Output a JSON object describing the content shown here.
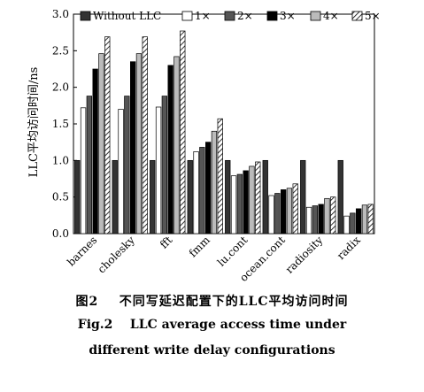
{
  "chart_data": {
    "type": "bar",
    "ylabel": "LLC平均访问时间/ns",
    "ylim": [
      0,
      3.0
    ],
    "yticks": [
      "0.0",
      "0.5",
      "1.0",
      "1.5",
      "2.0",
      "2.5",
      "3.0"
    ],
    "ytick_values": [
      0,
      0.5,
      1.0,
      1.5,
      2.0,
      2.5,
      3.0
    ],
    "legend_position": "top",
    "categories": [
      "barnes",
      "cholesky",
      "fft",
      "fmm",
      "lu.cont",
      "ocean.cont",
      "radiosity",
      "radix"
    ],
    "series": [
      {
        "name": "Without LLC",
        "pattern": "solid-dark",
        "values": [
          1.0,
          1.0,
          1.0,
          1.0,
          1.0,
          1.0,
          1.0,
          1.0
        ]
      },
      {
        "name": "1×",
        "pattern": "white",
        "values": [
          1.72,
          1.7,
          1.73,
          1.12,
          0.79,
          0.52,
          0.36,
          0.24
        ]
      },
      {
        "name": "2×",
        "pattern": "dark-gray",
        "values": [
          1.88,
          1.88,
          1.88,
          1.18,
          0.81,
          0.55,
          0.38,
          0.28
        ]
      },
      {
        "name": "3×",
        "pattern": "black",
        "values": [
          2.25,
          2.35,
          2.3,
          1.25,
          0.86,
          0.6,
          0.4,
          0.34
        ]
      },
      {
        "name": "4×",
        "pattern": "light-gray",
        "values": [
          2.46,
          2.46,
          2.42,
          1.4,
          0.92,
          0.62,
          0.48,
          0.39
        ]
      },
      {
        "name": "5×",
        "pattern": "hatched",
        "values": [
          2.69,
          2.69,
          2.77,
          1.57,
          0.98,
          0.68,
          0.5,
          0.4
        ]
      }
    ],
    "colors": {
      "solid-dark": "#333333",
      "white": "#ffffff",
      "dark-gray": "#555555",
      "black": "#000000",
      "light-gray": "#bbbbbb",
      "hatched": "#ffffff"
    }
  },
  "caption": {
    "cn_label": "图2",
    "cn_text": "不同写延迟配置下的LLC平均访问时间",
    "en_label": "Fig.2",
    "en_line1": "LLC average access time under",
    "en_line2": "different write delay configurations"
  }
}
